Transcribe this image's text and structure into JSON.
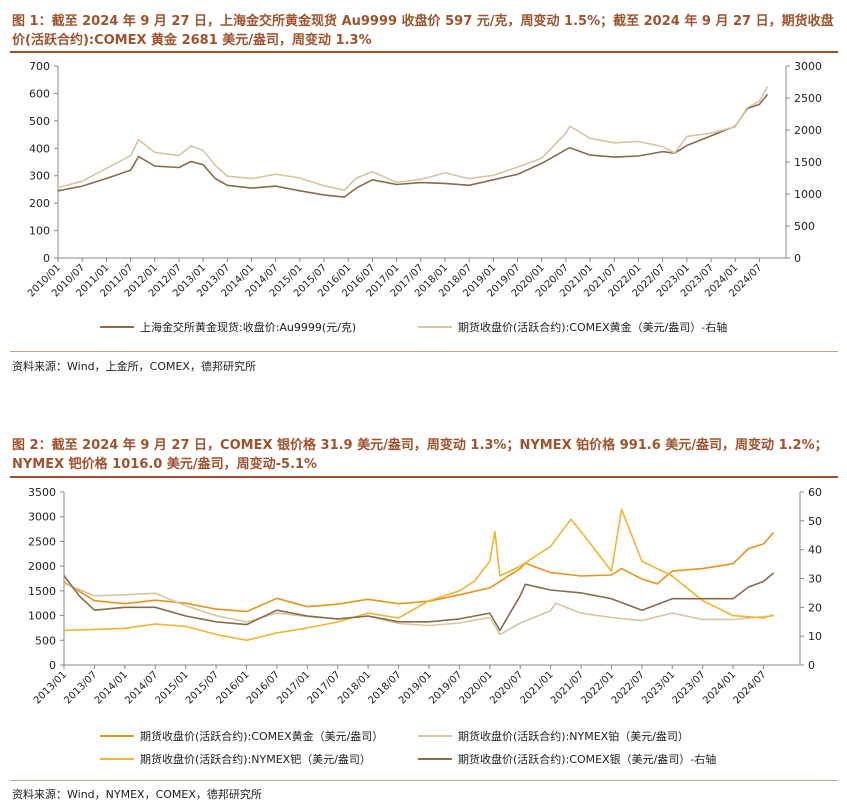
{
  "fig1": {
    "title": "图 1：截至 2024 年 9 月 27 日，上海金交所黄金现货 Au9999 收盘价 597 元/克，周变动 1.5%；截至 2024 年 9 月 27 日，期货收盘价(活跃合约):COMEX 黄金 2681 美元/盎司，周变动 1.3%",
    "source": "资料来源：Wind，上金所，COMEX，德邦研究所"
  },
  "fig2": {
    "title": "图 2：截至 2024 年 9 月 27 日，COMEX 银价格 31.9 美元/盎司，周变动 1.3%；NYMEX 铂价格 991.6 美元/盎司，周变动 1.2%；NYMEX 钯价格 1016.0 美元/盎司，周变动-5.1%",
    "source": "资料来源：Wind，NYMEX，COMEX，德邦研究所"
  },
  "chart_data": [
    {
      "type": "line",
      "x_ticks": [
        "2010/01",
        "2010/07",
        "2011/01",
        "2011/07",
        "2012/01",
        "2012/07",
        "2013/01",
        "2013/07",
        "2014/01",
        "2014/07",
        "2015/01",
        "2015/07",
        "2016/01",
        "2016/07",
        "2017/01",
        "2017/07",
        "2018/01",
        "2018/07",
        "2019/01",
        "2019/07",
        "2020/01",
        "2020/07",
        "2021/01",
        "2021/07",
        "2022/01",
        "2022/07",
        "2023/01",
        "2023/07",
        "2024/01",
        "2024/07"
      ],
      "ylim": [
        0,
        700
      ],
      "y_ticks": [
        0,
        100,
        200,
        300,
        400,
        500,
        600,
        700
      ],
      "y2lim": [
        0,
        3000
      ],
      "y2_ticks": [
        0,
        500,
        1000,
        1500,
        2000,
        2500,
        3000
      ],
      "grid": false,
      "legend_position": "bottom",
      "series": [
        {
          "name": "上海金交所黄金现货:收盘价:Au9999(元/克)",
          "axis": "left",
          "color": "#8b6a4a",
          "x": [
            "2010/01",
            "2010/07",
            "2011/01",
            "2011/07",
            "2011/09",
            "2012/01",
            "2012/07",
            "2012/10",
            "2013/01",
            "2013/04",
            "2013/07",
            "2014/01",
            "2014/07",
            "2015/01",
            "2015/07",
            "2015/12",
            "2016/03",
            "2016/07",
            "2017/01",
            "2017/07",
            "2018/01",
            "2018/07",
            "2019/01",
            "2019/07",
            "2020/01",
            "2020/07",
            "2020/08",
            "2021/01",
            "2021/07",
            "2022/01",
            "2022/07",
            "2022/10",
            "2023/01",
            "2023/07",
            "2024/01",
            "2024/04",
            "2024/07",
            "2024/09"
          ],
          "values": [
            245,
            262,
            290,
            320,
            370,
            335,
            330,
            352,
            340,
            290,
            265,
            255,
            262,
            245,
            230,
            222,
            255,
            285,
            268,
            275,
            272,
            265,
            285,
            305,
            345,
            395,
            402,
            375,
            368,
            372,
            388,
            382,
            410,
            445,
            480,
            545,
            560,
            597
          ]
        },
        {
          "name": "期货收盘价(活跃合约):COMEX黄金（美元/盎司）-右轴",
          "axis": "right",
          "color": "#d8c4a0",
          "x": [
            "2010/01",
            "2010/07",
            "2011/01",
            "2011/07",
            "2011/09",
            "2012/01",
            "2012/07",
            "2012/10",
            "2013/01",
            "2013/04",
            "2013/07",
            "2014/01",
            "2014/07",
            "2015/01",
            "2015/07",
            "2015/12",
            "2016/03",
            "2016/07",
            "2017/01",
            "2017/07",
            "2018/01",
            "2018/07",
            "2019/01",
            "2019/07",
            "2020/01",
            "2020/07",
            "2020/08",
            "2021/01",
            "2021/07",
            "2022/01",
            "2022/07",
            "2022/10",
            "2023/01",
            "2023/07",
            "2024/01",
            "2024/04",
            "2024/07",
            "2024/09"
          ],
          "values": [
            1100,
            1200,
            1400,
            1600,
            1850,
            1650,
            1600,
            1750,
            1680,
            1450,
            1280,
            1240,
            1310,
            1250,
            1130,
            1060,
            1250,
            1350,
            1180,
            1230,
            1330,
            1240,
            1290,
            1420,
            1560,
            1950,
            2060,
            1870,
            1800,
            1820,
            1740,
            1640,
            1900,
            1950,
            2050,
            2350,
            2450,
            2681
          ]
        }
      ]
    },
    {
      "type": "line",
      "x_ticks": [
        "2013/01",
        "2013/07",
        "2014/01",
        "2014/07",
        "2015/01",
        "2015/07",
        "2016/01",
        "2016/07",
        "2017/01",
        "2017/07",
        "2018/01",
        "2018/07",
        "2019/01",
        "2019/07",
        "2020/01",
        "2020/07",
        "2021/01",
        "2021/07",
        "2022/01",
        "2022/07",
        "2023/01",
        "2023/07",
        "2024/01",
        "2024/07"
      ],
      "ylim": [
        0,
        3500
      ],
      "y_ticks": [
        0,
        500,
        1000,
        1500,
        2000,
        2500,
        3000,
        3500
      ],
      "y2lim": [
        0,
        60
      ],
      "y2_ticks": [
        0,
        10,
        20,
        30,
        40,
        50,
        60
      ],
      "grid": false,
      "legend_position": "bottom",
      "series": [
        {
          "name": "期货收盘价(活跃合约):COMEX黄金（美元/盎司）",
          "axis": "left",
          "color": "#e8941a",
          "x": [
            "2013/01",
            "2013/07",
            "2014/01",
            "2014/07",
            "2015/01",
            "2015/07",
            "2016/01",
            "2016/07",
            "2017/01",
            "2017/07",
            "2018/01",
            "2018/07",
            "2019/01",
            "2019/07",
            "2020/01",
            "2020/07",
            "2020/08",
            "2021/01",
            "2021/07",
            "2022/01",
            "2022/03",
            "2022/07",
            "2022/10",
            "2023/01",
            "2023/07",
            "2024/01",
            "2024/04",
            "2024/07",
            "2024/09"
          ],
          "values": [
            1680,
            1300,
            1240,
            1310,
            1250,
            1130,
            1080,
            1350,
            1180,
            1230,
            1330,
            1240,
            1290,
            1420,
            1560,
            1950,
            2060,
            1870,
            1800,
            1820,
            1950,
            1740,
            1640,
            1900,
            1950,
            2050,
            2350,
            2450,
            2681
          ]
        },
        {
          "name": "期货收盘价(活跃合约):NYMEX铂（美元/盎司）",
          "axis": "left",
          "color": "#d8c4a0",
          "x": [
            "2013/01",
            "2013/07",
            "2014/01",
            "2014/07",
            "2015/01",
            "2015/07",
            "2016/01",
            "2016/07",
            "2017/01",
            "2017/07",
            "2018/01",
            "2018/07",
            "2019/01",
            "2019/07",
            "2020/01",
            "2020/03",
            "2020/07",
            "2021/01",
            "2021/02",
            "2021/07",
            "2022/01",
            "2022/07",
            "2023/01",
            "2023/07",
            "2024/01",
            "2024/07",
            "2024/09"
          ],
          "values": [
            1650,
            1400,
            1420,
            1450,
            1200,
            1000,
            870,
            1050,
            980,
            930,
            990,
            840,
            800,
            850,
            960,
            620,
            850,
            1100,
            1250,
            1050,
            960,
            900,
            1050,
            920,
            920,
            980,
            992
          ]
        },
        {
          "name": "期货收盘价(活跃合约):NYMEX钯（美元/盎司）",
          "axis": "left",
          "color": "#f3b52e",
          "x": [
            "2013/01",
            "2013/07",
            "2014/01",
            "2014/07",
            "2015/01",
            "2015/07",
            "2016/01",
            "2016/07",
            "2017/01",
            "2017/07",
            "2018/01",
            "2018/07",
            "2019/01",
            "2019/07",
            "2019/10",
            "2020/01",
            "2020/02",
            "2020/03",
            "2020/07",
            "2021/01",
            "2021/05",
            "2021/07",
            "2022/01",
            "2022/03",
            "2022/07",
            "2023/01",
            "2023/07",
            "2024/01",
            "2024/07",
            "2024/09"
          ],
          "values": [
            700,
            720,
            740,
            830,
            780,
            620,
            500,
            650,
            750,
            870,
            1050,
            950,
            1300,
            1500,
            1700,
            2100,
            2700,
            1800,
            2000,
            2400,
            2950,
            2700,
            1900,
            3150,
            2100,
            1800,
            1300,
            1000,
            950,
            1016
          ]
        },
        {
          "name": "期货收盘价(活跃合约):COMEX银（美元/盎司）-右轴",
          "axis": "right",
          "color": "#8b6a4a",
          "x": [
            "2013/01",
            "2013/04",
            "2013/07",
            "2014/01",
            "2014/07",
            "2015/01",
            "2015/07",
            "2016/01",
            "2016/07",
            "2017/01",
            "2017/07",
            "2018/01",
            "2018/07",
            "2019/01",
            "2019/07",
            "2020/01",
            "2020/03",
            "2020/07",
            "2020/08",
            "2021/01",
            "2021/07",
            "2022/01",
            "2022/07",
            "2023/01",
            "2023/07",
            "2024/01",
            "2024/04",
            "2024/07",
            "2024/09"
          ],
          "values": [
            31,
            24,
            19,
            20,
            20,
            17,
            15,
            14,
            19,
            17,
            16,
            17,
            15,
            15,
            16,
            18,
            12,
            24,
            28,
            26,
            25,
            23,
            19,
            23,
            23,
            23,
            27,
            29,
            31.9
          ]
        }
      ]
    }
  ]
}
